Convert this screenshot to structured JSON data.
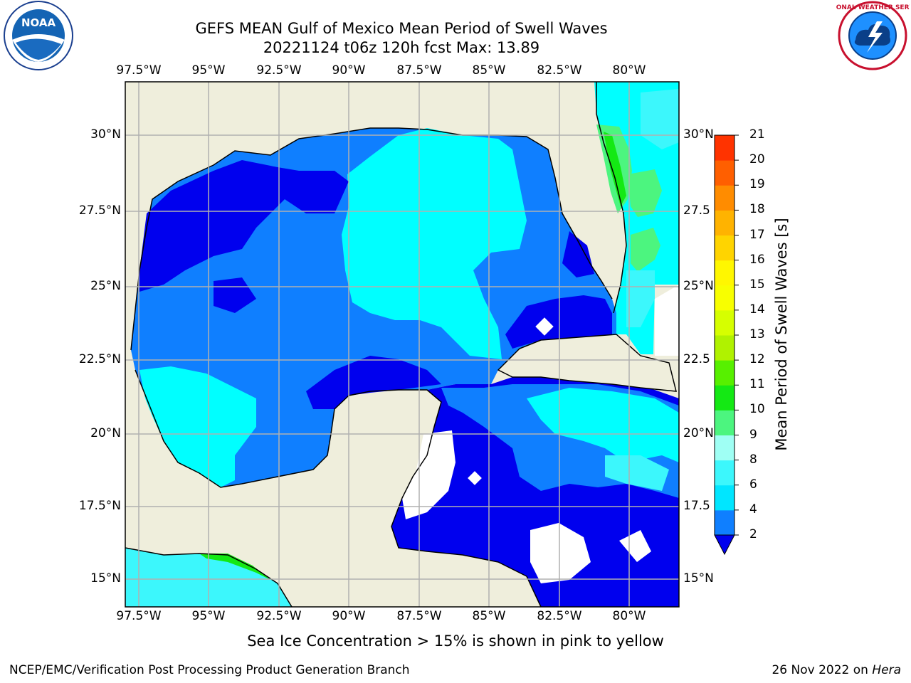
{
  "title": {
    "line1": "GEFS MEAN Gulf of Mexico Mean Period of Swell Waves",
    "line2": "20221124 t06z 120h fcst   Max: 13.89"
  },
  "lon_labels": [
    "97.5°W",
    "95°W",
    "92.5°W",
    "90°W",
    "87.5°W",
    "85°W",
    "82.5°W",
    "80°W"
  ],
  "lat_labels": [
    "30°N",
    "27.5°N",
    "25°N",
    "22.5°N",
    "20°N",
    "17.5°N",
    "15°N"
  ],
  "lat_labels_right": [
    "30°N",
    "27.5",
    "25°N",
    "22.5",
    "20°N",
    "17.5",
    "15°N"
  ],
  "colorbar": {
    "label": "Mean Period of Swell Waves [s]",
    "ticks": [
      "2",
      "4",
      "6",
      "8",
      "9",
      "10",
      "11",
      "12",
      "13",
      "14",
      "15",
      "16",
      "17",
      "18",
      "19",
      "20",
      "21"
    ],
    "colors": [
      "#0f7fff",
      "#00e6ff",
      "#3cf7fc",
      "#9ffff4",
      "#4cf57f",
      "#14e914",
      "#57f000",
      "#b0f200",
      "#d6ff00",
      "#f8ff00",
      "#fff700",
      "#ffd400",
      "#ffb300",
      "#ff8c00",
      "#ff5f00",
      "#ff3300",
      "#ff0000"
    ],
    "under_color": "#0000ee"
  },
  "note": "Sea Ice Concentration > 15% is shown in pink to yellow",
  "credit": "NCEP/EMC/Verification Post Processing Product Generation Branch",
  "date": {
    "text": "26 Nov 2022 on ",
    "host": "Hera"
  },
  "logos": {
    "left": "NOAA",
    "right_text": "NATIONAL WEATHER SERVICE"
  },
  "colors": {
    "land": "#efeedc",
    "ocean_low": "#0000ee",
    "ocean_mid": "#0f7fff",
    "ocean_high": "#00ffff",
    "grid": "#b0b0b0"
  }
}
